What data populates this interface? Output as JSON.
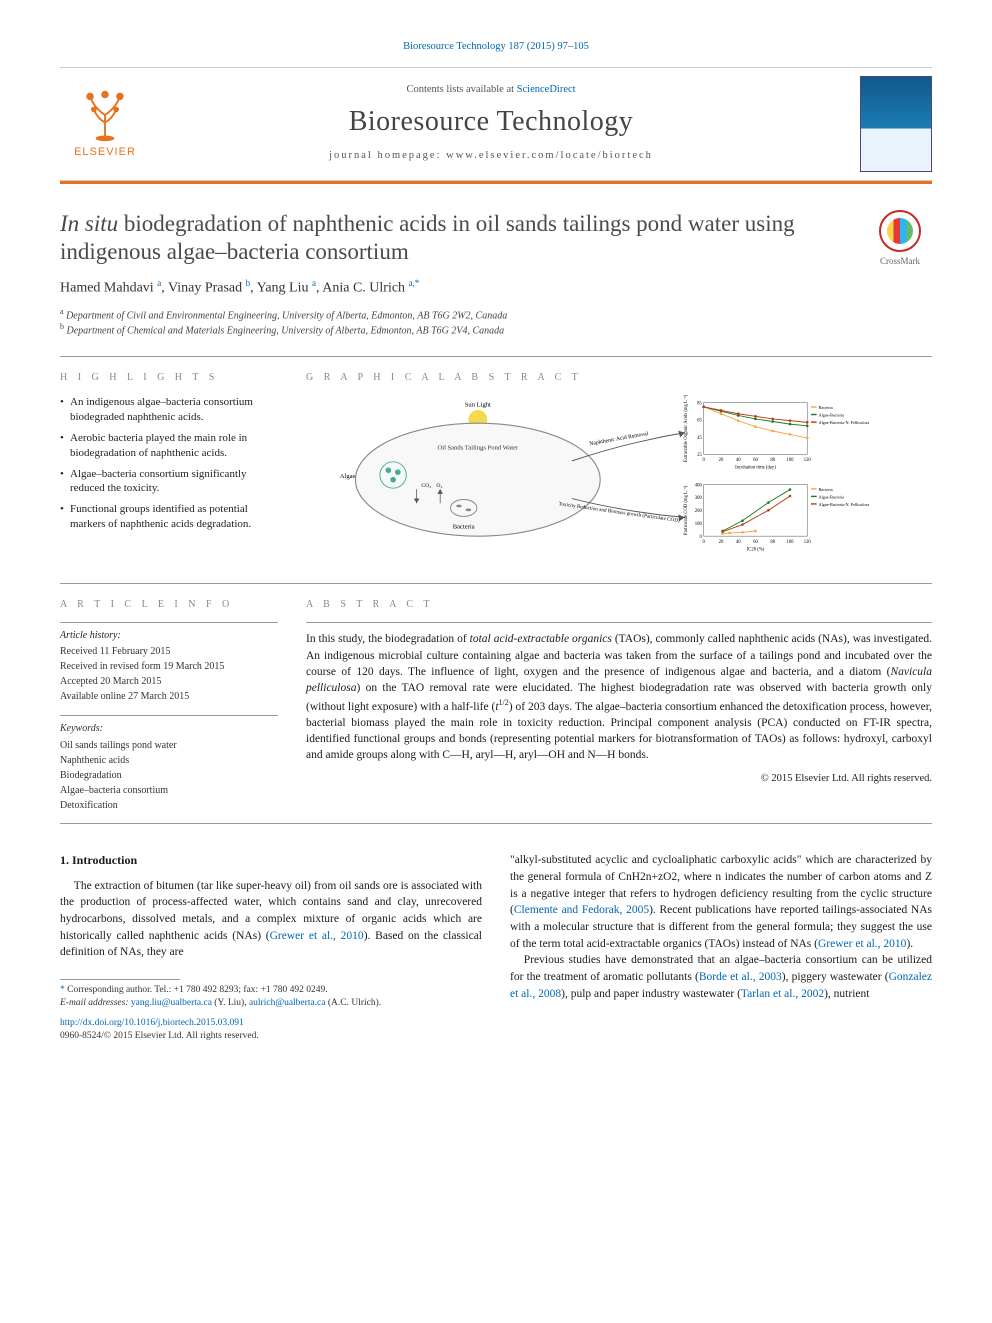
{
  "citation": "Bioresource Technology 187 (2015) 97–105",
  "header": {
    "contents_prefix": "Contents lists available at ",
    "sciencedirect": "ScienceDirect",
    "journal": "Bioresource Technology",
    "homepage_label": "journal homepage: ",
    "homepage_url": "www.elsevier.com/locate/biortech",
    "elsevier": "ELSEVIER"
  },
  "colors": {
    "link": "#0066b3",
    "orange": "#e9711c",
    "text_muted": "#888"
  },
  "title": {
    "prefix_italic": "In situ",
    "rest": " biodegradation of naphthenic acids in oil sands tailings pond water using indigenous algae–bacteria consortium"
  },
  "crossmark_label": "CrossMark",
  "authors_html": "Hamed Mahdavi <sup>a</sup>, Vinay Prasad <sup>b</sup>, Yang Liu <sup>a</sup>, Ania C. Ulrich <sup>a,*</sup>",
  "affiliations": [
    {
      "sup": "a",
      "text": "Department of Civil and Environmental Engineering, University of Alberta, Edmonton, AB T6G 2W2, Canada"
    },
    {
      "sup": "b",
      "text": "Department of Chemical and Materials Engineering, University of Alberta, Edmonton, AB T6G 2V4, Canada"
    }
  ],
  "labels": {
    "highlights": "H I G H L I G H T S",
    "graphical": "G R A P H I C A L  A B S T R A C T",
    "article_info": "A R T I C L E  I N F O",
    "abstract": "A B S T R A C T"
  },
  "highlights": [
    "An indigenous algae–bacteria consortium biodegraded naphthenic acids.",
    "Aerobic bacteria played the main role in biodegradation of naphthenic acids.",
    "Algae–bacteria consortium significantly reduced the toxicity.",
    "Functional groups identified as potential markers of naphthenic acids degradation."
  ],
  "article_info": {
    "history_head": "Article history:",
    "history": [
      "Received 11 February 2015",
      "Received in revised form 19 March 2015",
      "Accepted 20 March 2015",
      "Available online 27 March 2015"
    ],
    "keywords_head": "Keywords:",
    "keywords": [
      "Oil sands tailings pond water",
      "Naphthenic acids",
      "Biodegradation",
      "Algae–bacteria consortium",
      "Detoxification"
    ]
  },
  "graphical_abstract": {
    "sun_label": "Sun Light",
    "pond_label": "Oil Sands Tailings Pond Water",
    "algae_label": "Algae",
    "bacteria_label": "Bacteria",
    "co2": "CO₂",
    "o2": "O₂",
    "arrow1": "Naphthenic Acid Removal",
    "arrow2": "Toxicity Reduction and Biomass growth (Particulate COD)",
    "chart1": {
      "type": "line",
      "title": "Extractable Organic Acids (mg L⁻¹)",
      "xlabel": "Incubation time (day)",
      "xlim": [
        0,
        120
      ],
      "xtick_step": 20,
      "ylim": [
        25,
        85
      ],
      "yticks": [
        25,
        45,
        65,
        85
      ],
      "series": [
        {
          "name": "Bacteria",
          "color": "#f4a742",
          "marker": "triangle",
          "points": [
            [
              0,
              80
            ],
            [
              20,
              72
            ],
            [
              40,
              64
            ],
            [
              60,
              57
            ],
            [
              80,
              52
            ],
            [
              100,
              48
            ],
            [
              120,
              44
            ]
          ]
        },
        {
          "name": "Algae-Bacteria",
          "color": "#1f7a1f",
          "marker": "square",
          "points": [
            [
              0,
              80
            ],
            [
              20,
              75
            ],
            [
              40,
              70
            ],
            [
              60,
              66
            ],
            [
              80,
              63
            ],
            [
              100,
              60
            ],
            [
              120,
              58
            ]
          ]
        },
        {
          "name": "Algae-Bacteria-N. Pelliculosa",
          "color": "#b43c1a",
          "marker": "diamond",
          "points": [
            [
              0,
              80
            ],
            [
              20,
              76
            ],
            [
              40,
              72
            ],
            [
              60,
              69
            ],
            [
              80,
              66
            ],
            [
              100,
              64
            ],
            [
              120,
              62
            ]
          ]
        }
      ],
      "legend_pos": "top-right",
      "font_size": 6
    },
    "chart2": {
      "type": "line",
      "title": "Particulate COD (mg L⁻¹)",
      "xlabel": "IC20 (%)",
      "xlim": [
        0,
        120
      ],
      "xtick_step": 20,
      "ylim": [
        0,
        400
      ],
      "ytick_step": 100,
      "series": [
        {
          "name": "Bacteria",
          "color": "#f4a742",
          "marker": "triangle",
          "points": [
            [
              22,
              20
            ],
            [
              30,
              25
            ],
            [
              45,
              30
            ],
            [
              60,
              40
            ]
          ]
        },
        {
          "name": "Algae-Bacteria",
          "color": "#1f7a1f",
          "marker": "square",
          "points": [
            [
              22,
              40
            ],
            [
              45,
              120
            ],
            [
              75,
              260
            ],
            [
              100,
              360
            ]
          ]
        },
        {
          "name": "Algae-Bacteria-N. Pelliculosa",
          "color": "#b43c1a",
          "marker": "diamond",
          "points": [
            [
              22,
              35
            ],
            [
              45,
              90
            ],
            [
              75,
              200
            ],
            [
              100,
              310
            ]
          ]
        }
      ],
      "legend_pos": "top-right",
      "font_size": 6
    }
  },
  "abstract": {
    "body": "In this study, the biodegradation of total acid-extractable organics (TAOs), commonly called naphthenic acids (NAs), was investigated. An indigenous microbial culture containing algae and bacteria was taken from the surface of a tailings pond and incubated over the course of 120 days. The influence of light, oxygen and the presence of indigenous algae and bacteria, and a diatom (Navicula pelliculosa) on the TAO removal rate were elucidated. The highest biodegradation rate was observed with bacteria growth only (without light exposure) with a half-life (t1/2) of 203 days. The algae–bacteria consortium enhanced the detoxification process, however, bacterial biomass played the main role in toxicity reduction. Principal component analysis (PCA) conducted on FT-IR spectra, identified functional groups and bonds (representing potential markers for biotransformation of TAOs) as follows: hydroxyl, carboxyl and amide groups along with C—H, aryl—H, aryl—OH and N—H bonds.",
    "copyright": "© 2015 Elsevier Ltd. All rights reserved."
  },
  "introduction": {
    "heading": "1. Introduction",
    "p1_a": "The extraction of bitumen (tar like super-heavy oil) from oil sands ore is associated with the production of process-affected water, which contains sand and clay, unrecovered hydrocarbons, dissolved metals, and a complex mixture of organic acids which are historically called naphthenic acids (NAs) (",
    "p1_cite1": "Grewer et al., 2010",
    "p1_b": "). Based on the classical definition of NAs, they are",
    "p2_a": "\"alkyl-substituted acyclic and cycloaliphatic carboxylic acids\" which are characterized by the general formula of CnH2n+zO2, where n indicates the number of carbon atoms and Z is a negative integer that refers to hydrogen deficiency resulting from the cyclic structure (",
    "p2_cite1": "Clemente and Fedorak, 2005",
    "p2_b": "). Recent publications have reported tailings-associated NAs with a molecular structure that is different from the general formula; they suggest the use of the term total acid-extractable organics (TAOs) instead of NAs (",
    "p2_cite2": "Grewer et al., 2010",
    "p2_c": ").",
    "p3_a": "Previous studies have demonstrated that an algae–bacteria consortium can be utilized for the treatment of aromatic pollutants (",
    "p3_cite1": "Borde et al., 2003",
    "p3_b": "), piggery wastewater (",
    "p3_cite2": "Gonzalez et al., 2008",
    "p3_c": "), pulp and paper industry wastewater (",
    "p3_cite3": "Tarlan et al., 2002",
    "p3_d": "), nutrient"
  },
  "footnotes": {
    "corr": "Corresponding author. Tel.: +1 780 492 8293; fax: +1 780 492 0249.",
    "email_label": "E-mail addresses: ",
    "email1": "yang.liu@ualberta.ca",
    "email1_who": " (Y. Liu), ",
    "email2": "aulrich@ualberta.ca",
    "email2_who": " (A.C. Ulrich).",
    "doi": "http://dx.doi.org/10.1016/j.biortech.2015.03.091",
    "issn": "0960-8524/© 2015 Elsevier Ltd. All rights reserved."
  }
}
